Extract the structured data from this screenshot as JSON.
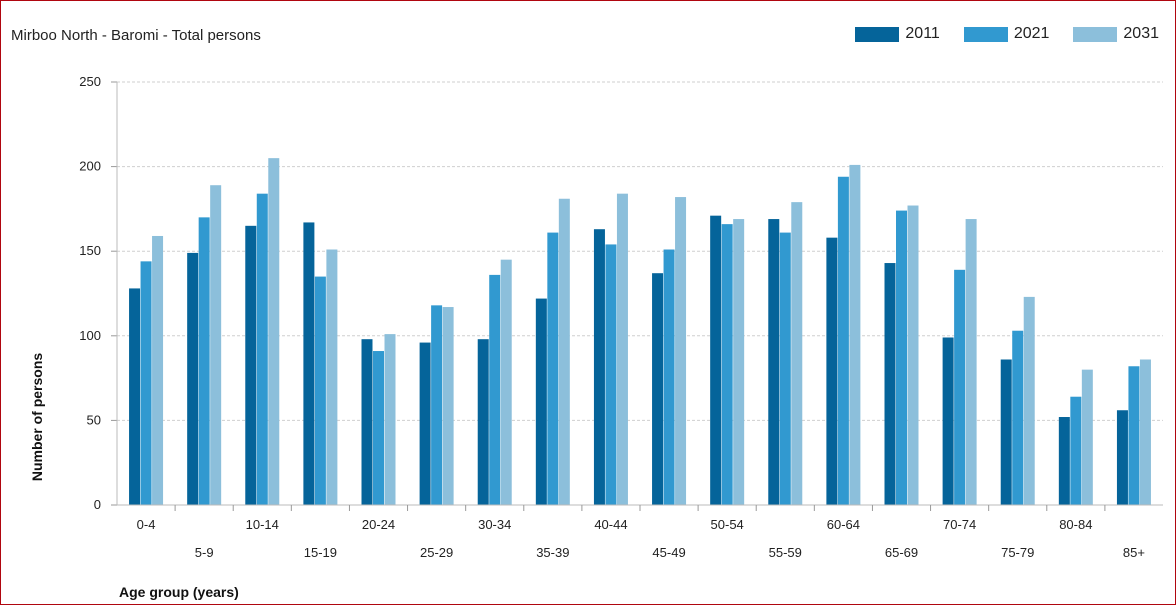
{
  "chart_data": {
    "type": "bar",
    "title": "Mirboo North - Baromi - Total persons",
    "xlabel": "Age group (years)",
    "ylabel": "Number of persons",
    "ylim": [
      0,
      250
    ],
    "yticks": [
      "0",
      "50",
      "100",
      "150",
      "200",
      "250"
    ],
    "grid": true,
    "legend_position": "top-right",
    "categories": [
      "0-4",
      "5-9",
      "10-14",
      "15-19",
      "20-24",
      "25-29",
      "30-34",
      "35-39",
      "40-44",
      "45-49",
      "50-54",
      "55-59",
      "60-64",
      "65-69",
      "70-74",
      "75-79",
      "80-84",
      "85+"
    ],
    "series": [
      {
        "name": "2011",
        "color": "#05649a",
        "values": [
          128,
          149,
          165,
          167,
          98,
          96,
          98,
          122,
          163,
          137,
          171,
          169,
          158,
          143,
          99,
          86,
          52,
          56
        ]
      },
      {
        "name": "2021",
        "color": "#3199d0",
        "values": [
          144,
          170,
          184,
          135,
          91,
          118,
          136,
          161,
          154,
          151,
          166,
          161,
          194,
          174,
          139,
          103,
          64,
          82
        ]
      },
      {
        "name": "2031",
        "color": "#8cbfdb",
        "values": [
          159,
          189,
          205,
          151,
          101,
          117,
          145,
          181,
          184,
          182,
          169,
          179,
          201,
          177,
          169,
          123,
          80,
          86
        ]
      }
    ]
  }
}
